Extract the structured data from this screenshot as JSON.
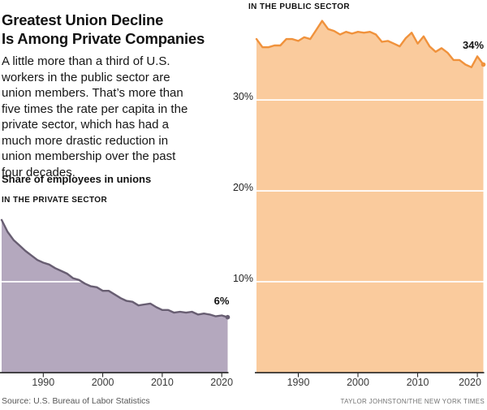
{
  "header": {
    "title_lines": [
      "Greatest Union Decline",
      "Is Among Private Companies"
    ],
    "description_lines": [
      "A little more than a third of U.S.",
      "workers in the public sector are",
      "union members. That’s more than",
      "five times the rate per capita in the",
      "private sector, which has had a",
      "much more drastic reduction in",
      "union membership over the past",
      "four decades."
    ],
    "subtitle": "Share of employees in unions"
  },
  "footer": {
    "source": "Source: U.S. Bureau of Labor Statistics",
    "credit": "TAYLOR JOHNSTON/THE NEW YORK TIMES"
  },
  "chart_data": [
    {
      "type": "area",
      "label": "IN THE PRIVATE SECTOR",
      "unit": "%",
      "x": [
        1983,
        1984,
        1985,
        1986,
        1987,
        1988,
        1989,
        1990,
        1991,
        1992,
        1993,
        1994,
        1995,
        1996,
        1997,
        1998,
        1999,
        2000,
        2001,
        2002,
        2003,
        2004,
        2005,
        2006,
        2007,
        2008,
        2009,
        2010,
        2011,
        2012,
        2013,
        2014,
        2015,
        2016,
        2017,
        2018,
        2019,
        2020,
        2021
      ],
      "values": [
        16.8,
        15.5,
        14.6,
        14.0,
        13.4,
        12.9,
        12.4,
        12.1,
        11.9,
        11.5,
        11.2,
        10.9,
        10.4,
        10.2,
        9.8,
        9.5,
        9.4,
        9.0,
        9.0,
        8.6,
        8.2,
        7.9,
        7.8,
        7.4,
        7.5,
        7.6,
        7.2,
        6.9,
        6.9,
        6.6,
        6.7,
        6.6,
        6.7,
        6.4,
        6.5,
        6.4,
        6.2,
        6.3,
        6.1
      ],
      "ylim": [
        0,
        41
      ],
      "x_ticks": [
        1990,
        2000,
        2010,
        2020
      ],
      "y_gridlines": [
        10,
        20,
        30
      ],
      "y_axis_labels": [],
      "end_label": "6%",
      "colors": {
        "fill": "#B4A8BE",
        "line": "#685E72",
        "grid": "#FFFFFF",
        "axis": "#121212"
      }
    },
    {
      "type": "area",
      "label": "IN THE PUBLIC SECTOR",
      "unit": "%",
      "x": [
        1983,
        1984,
        1985,
        1986,
        1987,
        1988,
        1989,
        1990,
        1991,
        1992,
        1993,
        1994,
        1995,
        1996,
        1997,
        1998,
        1999,
        2000,
        2001,
        2002,
        2003,
        2004,
        2005,
        2006,
        2007,
        2008,
        2009,
        2010,
        2011,
        2012,
        2013,
        2014,
        2015,
        2016,
        2017,
        2018,
        2019,
        2020,
        2021
      ],
      "values": [
        36.7,
        35.8,
        35.8,
        36.0,
        36.0,
        36.7,
        36.7,
        36.5,
        36.9,
        36.7,
        37.7,
        38.7,
        37.8,
        37.6,
        37.2,
        37.5,
        37.3,
        37.5,
        37.4,
        37.5,
        37.2,
        36.4,
        36.5,
        36.2,
        35.9,
        36.8,
        37.4,
        36.2,
        37.0,
        35.9,
        35.3,
        35.7,
        35.2,
        34.4,
        34.4,
        33.9,
        33.6,
        34.8,
        33.9
      ],
      "ylim": [
        0,
        41
      ],
      "x_ticks": [
        1990,
        2000,
        2010,
        2020
      ],
      "y_gridlines": [
        10,
        20,
        30
      ],
      "y_axis_labels": [
        {
          "value": 30,
          "label": "30%"
        },
        {
          "value": 20,
          "label": "20%"
        },
        {
          "value": 10,
          "label": "10%"
        }
      ],
      "end_label": "34%",
      "colors": {
        "fill": "#FACB9D",
        "line": "#F0923C",
        "grid": "#FFFFFF",
        "axis": "#121212"
      }
    }
  ]
}
